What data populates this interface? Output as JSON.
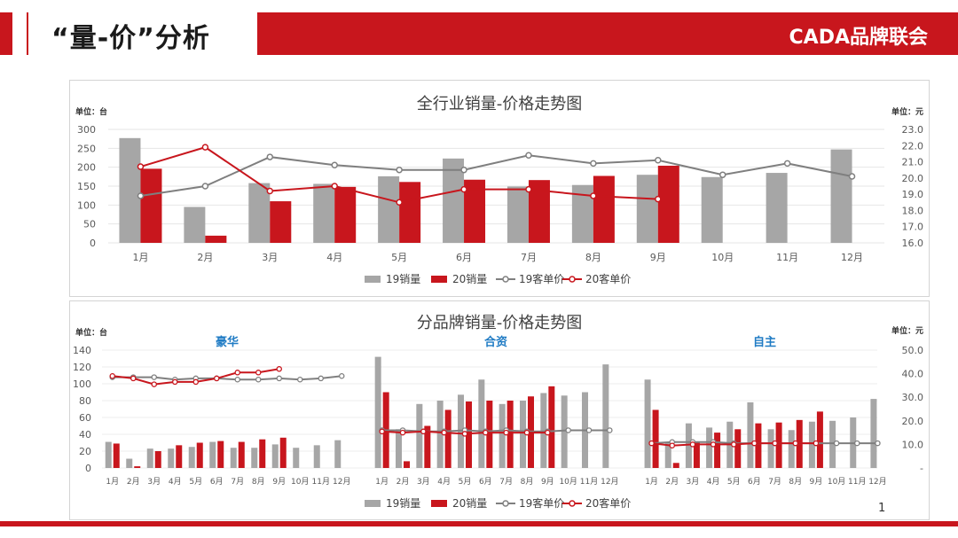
{
  "header": {
    "title": "“量-价”分析",
    "brand": "CADA品牌联会"
  },
  "page_number": "1",
  "colors": {
    "red": "#c8161d",
    "gray": "#a6a6a6",
    "line_gray": "#7f7f7f",
    "text": "#404040",
    "brand_blue": "#1f7bc4"
  },
  "chart_data": [
    {
      "type": "bar",
      "title": "全行业销量-价格走势图",
      "ylabel": "单位：台",
      "y2label": "单位：元",
      "categories": [
        "1月",
        "2月",
        "3月",
        "4月",
        "5月",
        "6月",
        "7月",
        "8月",
        "9月",
        "10月",
        "11月",
        "12月"
      ],
      "ylim": [
        0,
        300
      ],
      "yticks": [
        0,
        50,
        100,
        150,
        200,
        250,
        300
      ],
      "y2lim": [
        16.0,
        23.0
      ],
      "y2ticks": [
        "16.0",
        "17.0",
        "18.0",
        "19.0",
        "20.0",
        "21.0",
        "22.0",
        "23.0"
      ],
      "series": [
        {
          "name": "19销量",
          "kind": "bar",
          "axis": "left",
          "values": [
            277,
            95,
            158,
            156,
            176,
            223,
            149,
            153,
            180,
            174,
            185,
            247
          ]
        },
        {
          "name": "20销量",
          "kind": "bar",
          "axis": "left",
          "values": [
            196,
            19,
            110,
            148,
            161,
            167,
            166,
            177,
            204,
            null,
            null,
            null
          ]
        },
        {
          "name": "19客单价",
          "kind": "line",
          "axis": "right",
          "values": [
            18.9,
            19.5,
            21.3,
            20.8,
            20.5,
            20.5,
            21.4,
            20.9,
            21.1,
            20.2,
            20.9,
            20.1
          ]
        },
        {
          "name": "20客单价",
          "kind": "line",
          "axis": "right",
          "values": [
            20.7,
            21.9,
            19.2,
            19.5,
            18.5,
            19.3,
            19.3,
            18.9,
            18.7,
            null,
            null,
            null
          ]
        }
      ],
      "legend": "bottom",
      "grid": true
    },
    {
      "type": "bar",
      "title": "分品牌销量-价格走势图",
      "ylabel": "单位：台",
      "y2label": "单位：元",
      "ylim": [
        0,
        140
      ],
      "yticks": [
        0,
        20,
        40,
        60,
        80,
        100,
        120,
        140
      ],
      "y2lim": [
        0,
        50
      ],
      "y2ticks": [
        "-",
        "10.0",
        "20.0",
        "30.0",
        "40.0",
        "50.0"
      ],
      "legend": "bottom",
      "grid": true,
      "groups": [
        {
          "name": "豪华",
          "categories": [
            "1月",
            "2月",
            "3月",
            "4月",
            "5月",
            "6月",
            "7月",
            "8月",
            "9月",
            "10月",
            "11月",
            "12月"
          ],
          "series": [
            {
              "name": "19销量",
              "values": [
                31,
                11,
                23,
                23,
                25,
                31,
                24,
                24,
                28,
                24,
                27,
                33
              ]
            },
            {
              "name": "20销量",
              "values": [
                29,
                2,
                20,
                27,
                30,
                32,
                31,
                34,
                36,
                null,
                null,
                null
              ]
            },
            {
              "name": "19客单价",
              "values": [
                38.5,
                38.5,
                38.5,
                37.5,
                38.0,
                38.0,
                37.5,
                37.5,
                38.0,
                37.5,
                38.0,
                39.0
              ]
            },
            {
              "name": "20客单价",
              "values": [
                39.0,
                38.0,
                35.5,
                36.5,
                36.5,
                38.0,
                40.5,
                40.5,
                42.0,
                null,
                null,
                null
              ]
            }
          ]
        },
        {
          "name": "合资",
          "categories": [
            "1月",
            "2月",
            "3月",
            "4月",
            "5月",
            "6月",
            "7月",
            "8月",
            "9月",
            "10月",
            "11月",
            "12月"
          ],
          "series": [
            {
              "name": "19销量",
              "values": [
                132,
                46,
                76,
                80,
                87,
                105,
                76,
                80,
                89,
                86,
                90,
                123
              ]
            },
            {
              "name": "20销量",
              "values": [
                90,
                8,
                50,
                69,
                79,
                80,
                80,
                85,
                97,
                null,
                null,
                null
              ]
            },
            {
              "name": "19客单价",
              "values": [
                16.0,
                16.0,
                15.5,
                15.5,
                16.0,
                15.5,
                16.0,
                15.5,
                15.5,
                16.0,
                16.0,
                16.0
              ]
            },
            {
              "name": "20客单价",
              "values": [
                15.5,
                15.0,
                15.5,
                15.0,
                14.5,
                15.0,
                15.0,
                15.0,
                15.0,
                null,
                null,
                null
              ]
            }
          ]
        },
        {
          "name": "自主",
          "categories": [
            "1月",
            "2月",
            "3月",
            "4月",
            "5月",
            "6月",
            "7月",
            "8月",
            "9月",
            "10月",
            "11月",
            "12月"
          ],
          "series": [
            {
              "name": "19销量",
              "values": [
                105,
                31,
                53,
                48,
                55,
                78,
                46,
                45,
                55,
                56,
                60,
                82
              ]
            },
            {
              "name": "20销量",
              "values": [
                69,
                6,
                30,
                42,
                46,
                53,
                54,
                57,
                67,
                null,
                null,
                null
              ]
            },
            {
              "name": "19客单价",
              "values": [
                10.5,
                11.0,
                11.0,
                11.0,
                10.5,
                10.5,
                10.5,
                10.5,
                10.5,
                10.5,
                10.5,
                10.5
              ]
            },
            {
              "name": "20客单价",
              "values": [
                10.5,
                9.5,
                10.0,
                10.0,
                10.0,
                10.5,
                10.5,
                10.5,
                10.5,
                null,
                null,
                null
              ]
            }
          ]
        }
      ]
    }
  ]
}
